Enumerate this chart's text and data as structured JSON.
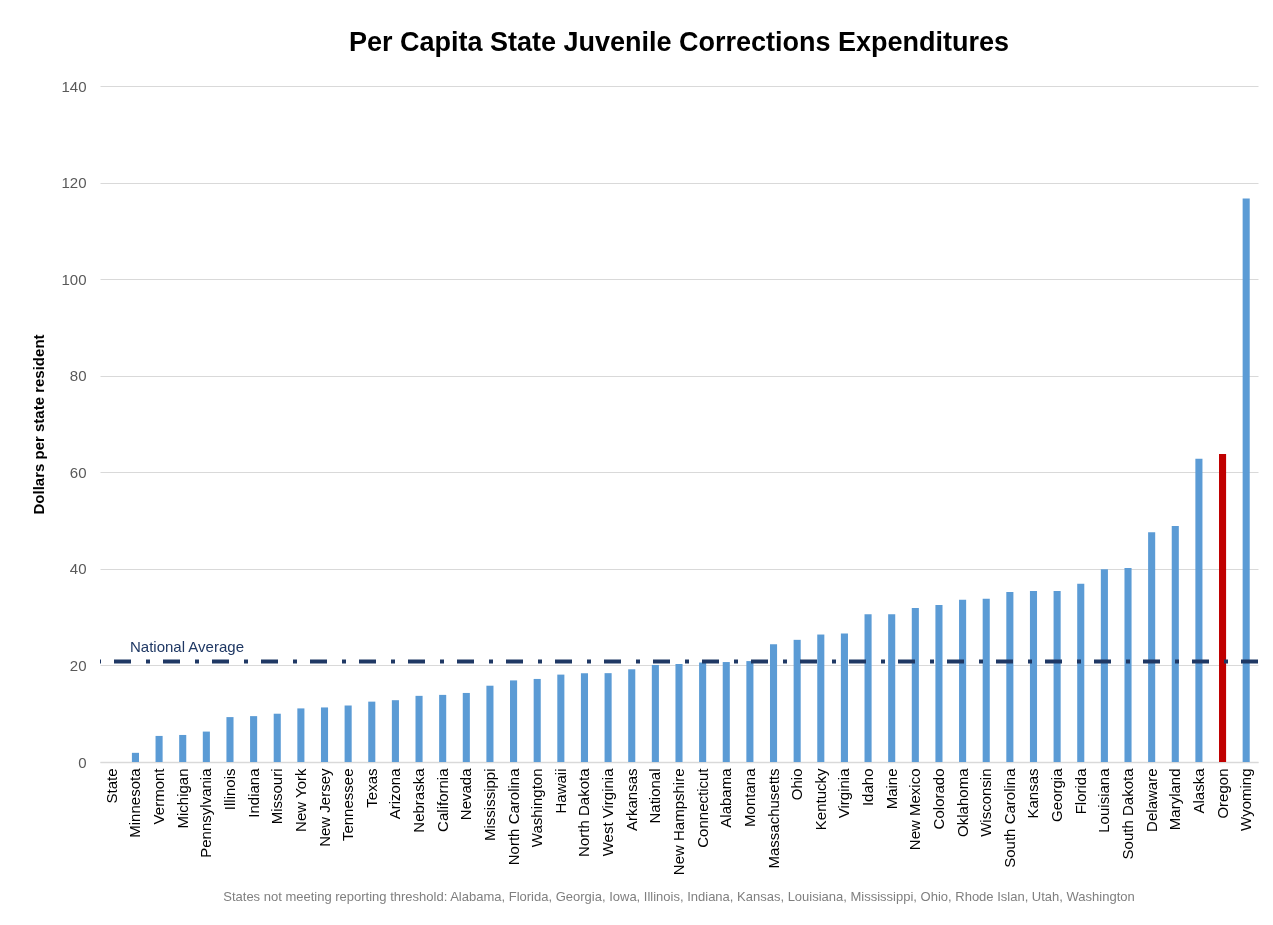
{
  "chart_data": {
    "type": "bar",
    "title": "Per Capita State Juvenile Corrections Expenditures",
    "ylabel": "Dollars per state resident",
    "categories": [
      "State",
      "Minnesota",
      "Vermont",
      "Michigan",
      "Pennsylvania",
      "Illinois",
      "Indiana",
      "Missouri",
      "New York",
      "New Jersey",
      "Tennessee",
      "Texas",
      "Arizona",
      "Nebraska",
      "California",
      "Nevada",
      "Mississippi",
      "North Carolina",
      "Washington",
      "Hawaii",
      "North Dakota",
      "West Virginia",
      "Arkansas",
      "National",
      "New Hampshire",
      "Connecticut",
      "Alabama",
      "Montana",
      "Massachusetts",
      "Ohio",
      "Kentucky",
      "Virginia",
      "Idaho",
      "Maine",
      "New Mexico",
      "Colorado",
      "Oklahoma",
      "Wisconsin",
      "South Carolina",
      "Kansas",
      "Georgia",
      "Florida",
      "Louisiana",
      "South Dakota",
      "Delaware",
      "Maryland",
      "Alaska",
      "Oregon",
      "Wyoming"
    ],
    "values": [
      null,
      1.9,
      5.4,
      5.6,
      6.3,
      9.3,
      9.5,
      10.0,
      11.1,
      11.3,
      11.7,
      12.5,
      12.8,
      13.7,
      13.9,
      14.3,
      15.8,
      16.9,
      17.2,
      18.1,
      18.4,
      18.4,
      19.2,
      20.1,
      20.3,
      20.6,
      20.7,
      20.9,
      24.4,
      25.3,
      26.4,
      26.6,
      30.6,
      30.6,
      31.9,
      32.5,
      33.6,
      33.8,
      35.2,
      35.4,
      35.4,
      36.9,
      39.9,
      40.2,
      47.6,
      48.9,
      62.8,
      63.8,
      116.7
    ],
    "colors": [
      "#5b9bd5",
      "#5b9bd5",
      "#5b9bd5",
      "#5b9bd5",
      "#5b9bd5",
      "#5b9bd5",
      "#5b9bd5",
      "#5b9bd5",
      "#5b9bd5",
      "#5b9bd5",
      "#5b9bd5",
      "#5b9bd5",
      "#5b9bd5",
      "#5b9bd5",
      "#5b9bd5",
      "#5b9bd5",
      "#5b9bd5",
      "#5b9bd5",
      "#5b9bd5",
      "#5b9bd5",
      "#5b9bd5",
      "#5b9bd5",
      "#5b9bd5",
      "#5b9bd5",
      "#5b9bd5",
      "#5b9bd5",
      "#5b9bd5",
      "#5b9bd5",
      "#5b9bd5",
      "#5b9bd5",
      "#5b9bd5",
      "#5b9bd5",
      "#5b9bd5",
      "#5b9bd5",
      "#5b9bd5",
      "#5b9bd5",
      "#5b9bd5",
      "#5b9bd5",
      "#5b9bd5",
      "#5b9bd5",
      "#5b9bd5",
      "#5b9bd5",
      "#5b9bd5",
      "#5b9bd5",
      "#5b9bd5",
      "#5b9bd5",
      "#5b9bd5",
      "#c00000",
      "#5b9bd5"
    ],
    "ylim": [
      0,
      140
    ],
    "yticks": [
      0,
      20,
      40,
      60,
      80,
      100,
      120,
      140
    ],
    "grid": "y",
    "legend": false,
    "ref_lines": [
      {
        "axis": "y",
        "value": 20.8,
        "label": "National Average",
        "color": "#1f3864",
        "line_style": "dashed"
      }
    ],
    "annotations": [
      "States not meeting reporting threshold: Alabama, Florida, Georgia, Iowa, Illinois, Indiana, Kansas, Louisiana, Mississippi, Ohio, Rhode Islan, Utah, Washington"
    ]
  }
}
